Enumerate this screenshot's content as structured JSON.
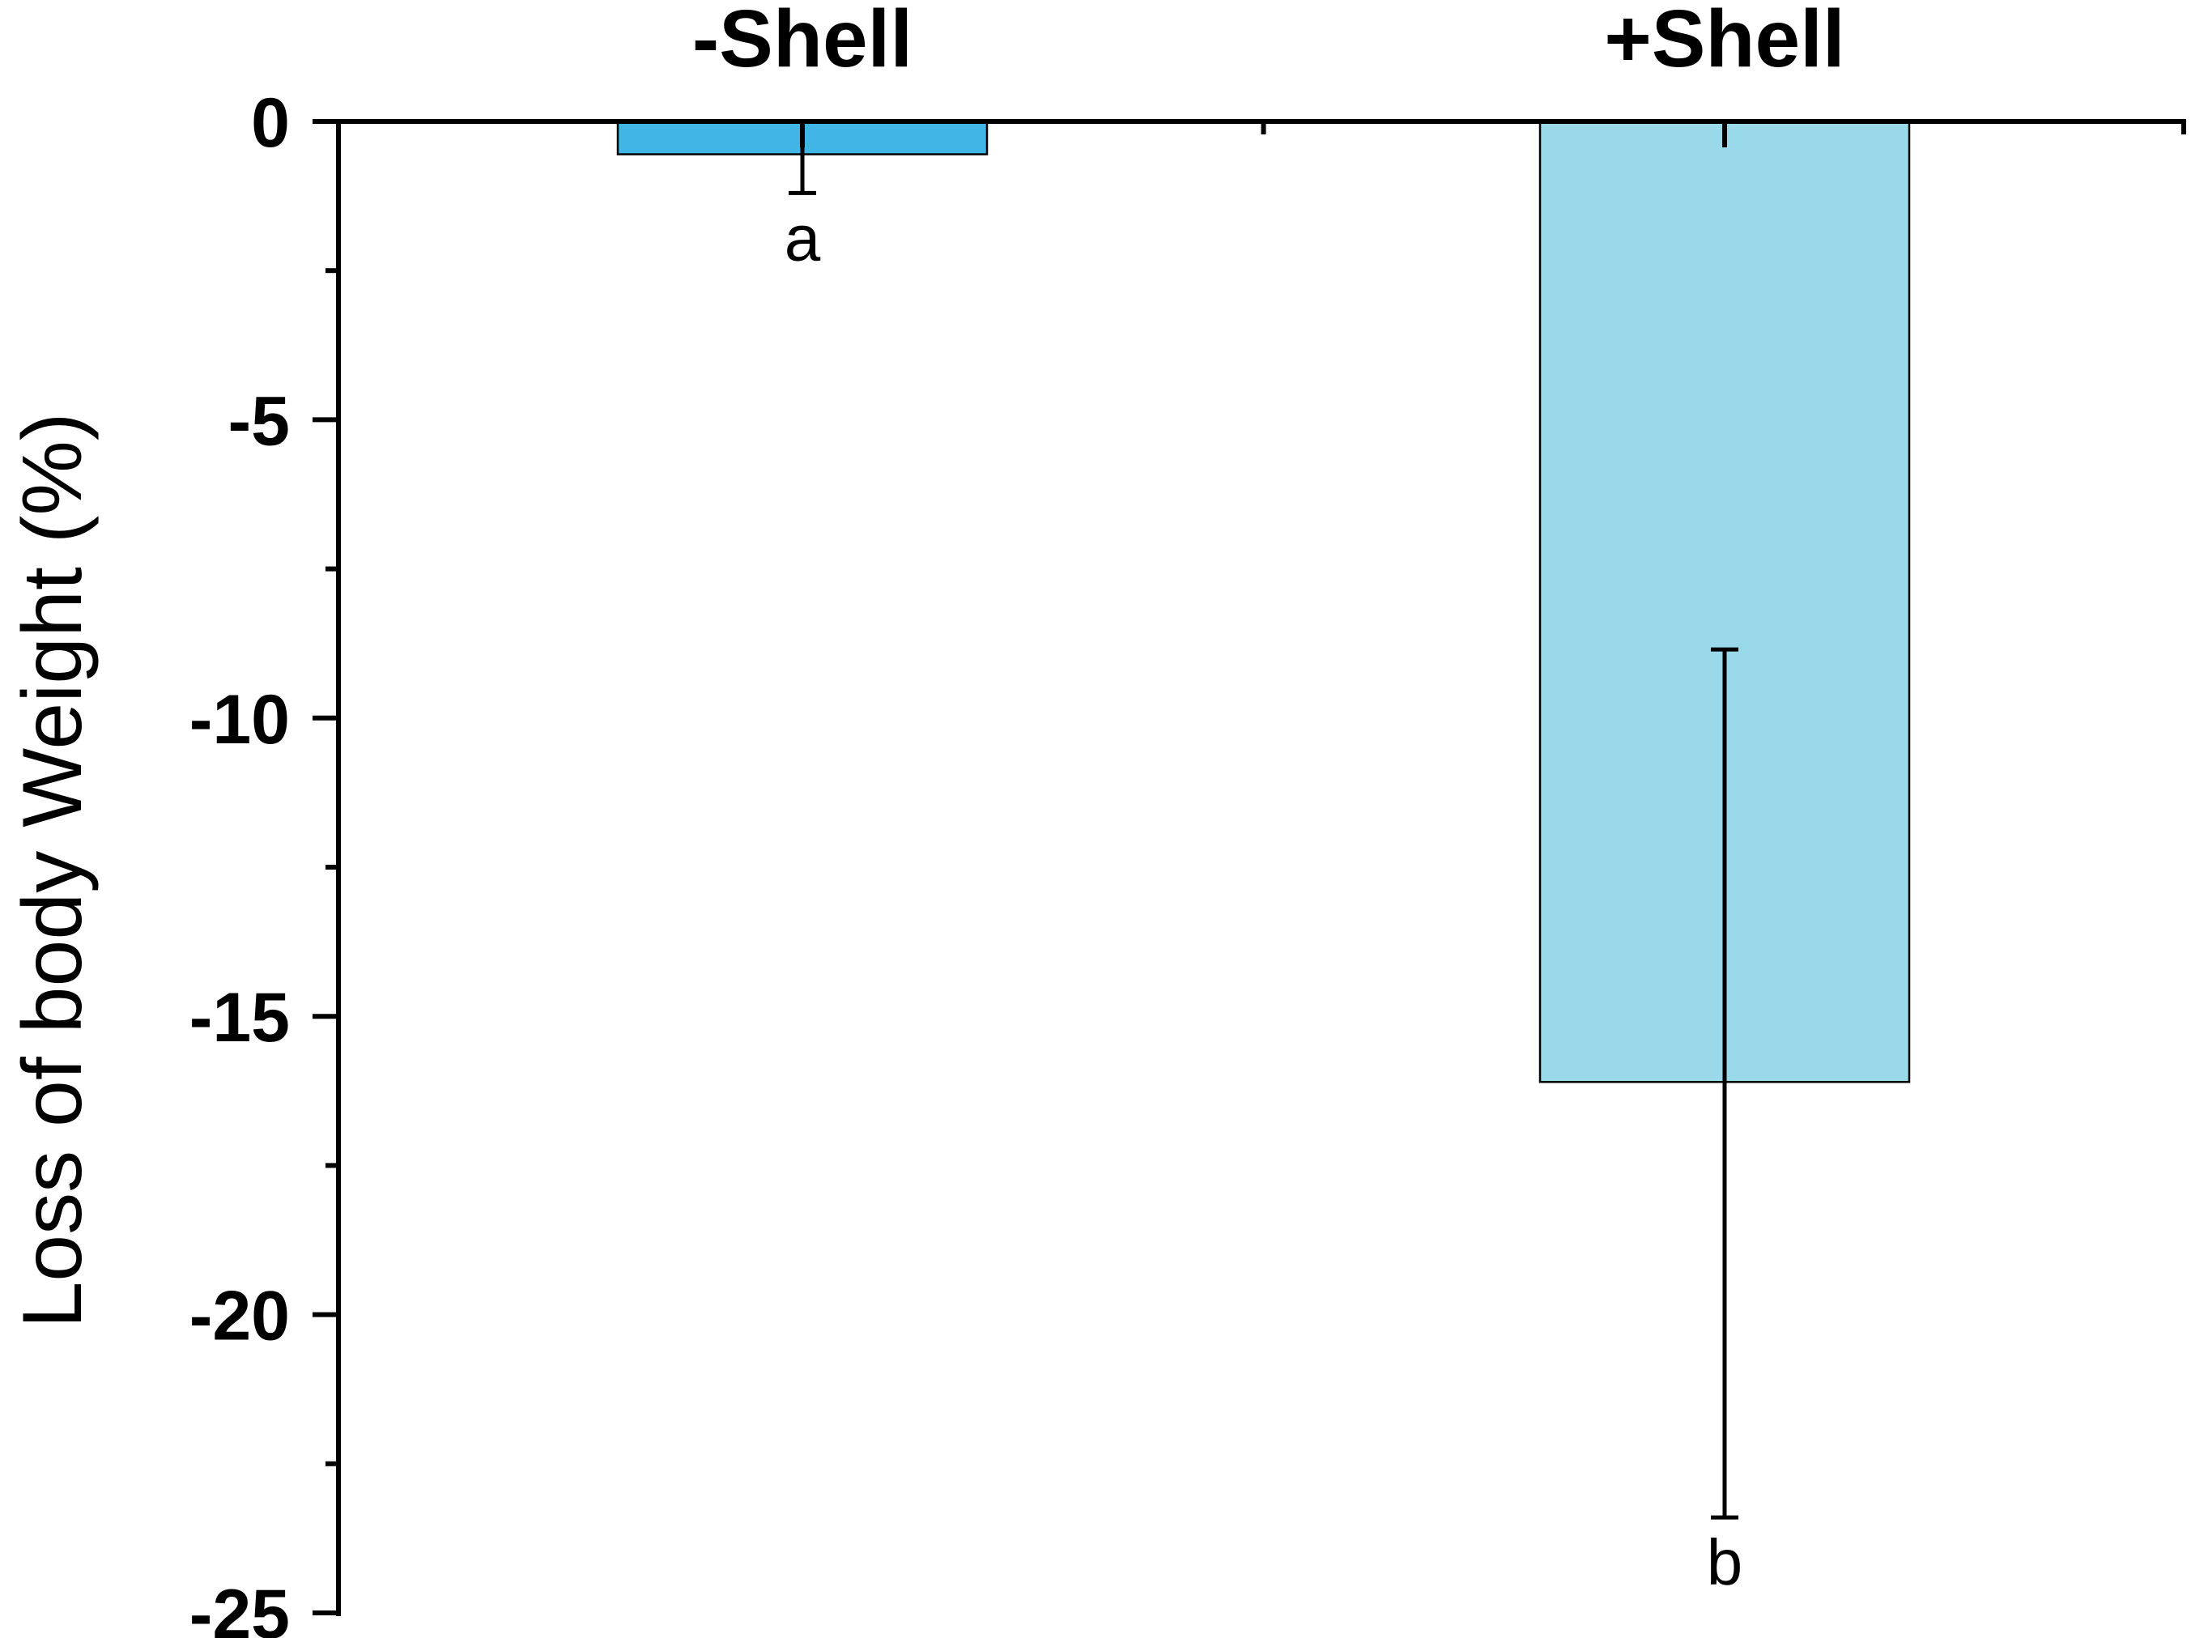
{
  "chart_data": {
    "type": "bar",
    "title": "",
    "xlabel": "",
    "ylabel": "Loss of body Weight (%)",
    "ylim": [
      -25,
      0
    ],
    "yticks": [
      0,
      -5,
      -10,
      -15,
      -20,
      -25
    ],
    "ytick_labels": [
      "0",
      "-5",
      "-10",
      "-15",
      "-20",
      "-25"
    ],
    "y_minor_ticks": [
      -2.5,
      -7.5,
      -12.5,
      -17.5,
      -22.5
    ],
    "x_axis_position": "top",
    "grid": false,
    "legend": "none",
    "categories": [
      "-Shell",
      "+Shell"
    ],
    "values": [
      -0.55,
      -16.1
    ],
    "error_low": [
      -1.2,
      -23.4
    ],
    "error_high": [
      0.0,
      -8.85
    ],
    "significance_letters": [
      "a",
      "b"
    ],
    "colors": [
      "#41b6e6",
      "#99d9e9"
    ]
  }
}
